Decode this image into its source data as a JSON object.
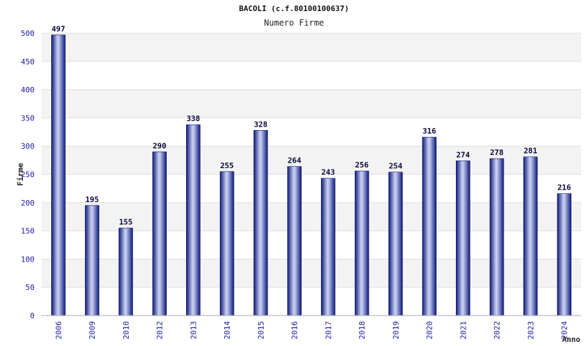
{
  "chart_data": {
    "type": "bar",
    "title": "BACOLI (c.f.80100100637)",
    "subtitle": "Numero Firme",
    "xlabel": "Anno",
    "ylabel": "Firme",
    "ylim": [
      0,
      500
    ],
    "yticks": [
      0,
      50,
      100,
      150,
      200,
      250,
      300,
      350,
      400,
      450,
      500
    ],
    "categories": [
      "2006",
      "2009",
      "2010",
      "2012",
      "2013",
      "2014",
      "2015",
      "2016",
      "2017",
      "2018",
      "2019",
      "2020",
      "2021",
      "2022",
      "2023",
      "2024"
    ],
    "values": [
      497,
      195,
      155,
      290,
      338,
      255,
      328,
      264,
      243,
      256,
      254,
      316,
      274,
      278,
      281,
      216
    ],
    "bar_color": "#1e2a8c",
    "grid": true
  }
}
